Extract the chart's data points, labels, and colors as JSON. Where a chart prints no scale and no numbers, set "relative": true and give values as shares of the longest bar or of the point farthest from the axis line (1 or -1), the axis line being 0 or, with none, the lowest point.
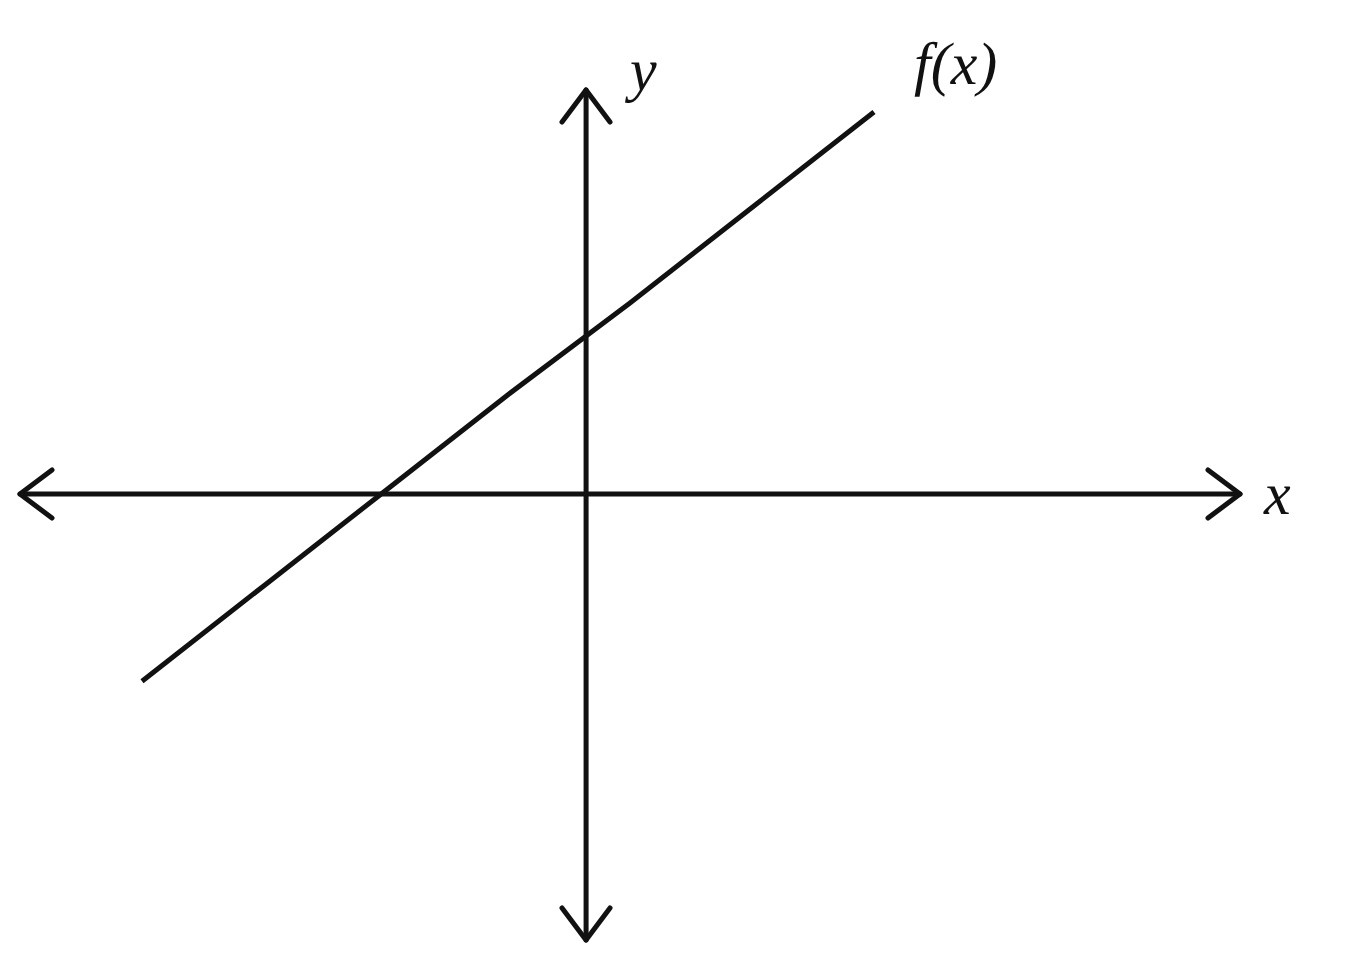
{
  "chart_data": {
    "type": "line",
    "relative": true,
    "xlabel": "x",
    "ylabel": "y",
    "categories": [
      null,
      null,
      null,
      null,
      null,
      null,
      null,
      null,
      null,
      null,
      null
    ],
    "series": [
      {
        "name": "f(x)",
        "color": "#111111",
        "values": [
          null,
          -0.49,
          -0.24,
          0.01,
          0.26,
          0.5,
          0.75,
          1,
          null,
          null,
          null
        ]
      }
    ],
    "legend": false,
    "marker": "none",
    "line_style": "solid"
  }
}
